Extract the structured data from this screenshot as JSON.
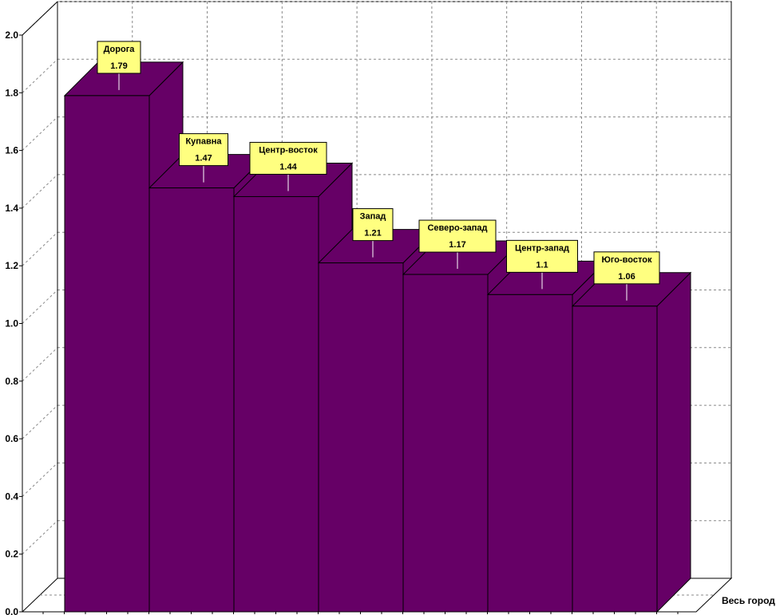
{
  "chart_data": {
    "type": "bar",
    "style": "3d",
    "categories": [
      "Дорога",
      "Купавна",
      "Центр-восток",
      "Запад",
      "Северо-запад",
      "Центр-запад",
      "Юго-восток"
    ],
    "values": [
      1.79,
      1.47,
      1.44,
      1.21,
      1.17,
      1.1,
      1.06
    ],
    "data_labels": [
      "1.79",
      "1.47",
      "1.44",
      "1.21",
      "1.17",
      "1.1",
      "1.06"
    ],
    "x_category_label": "Весь город",
    "yticks": [
      "0.0",
      "0.2",
      "0.4",
      "0.6",
      "0.8",
      "1.0",
      "1.2",
      "1.4",
      "1.6",
      "1.8",
      "2.0"
    ],
    "ylim": [
      0,
      2.0
    ],
    "grid": true,
    "colors": {
      "bar_front": "#660066",
      "bar_top": "#660066",
      "bar_side": "#660066",
      "callout_bg": "#ffff80",
      "grid": "#888888",
      "axis": "#000000"
    }
  }
}
